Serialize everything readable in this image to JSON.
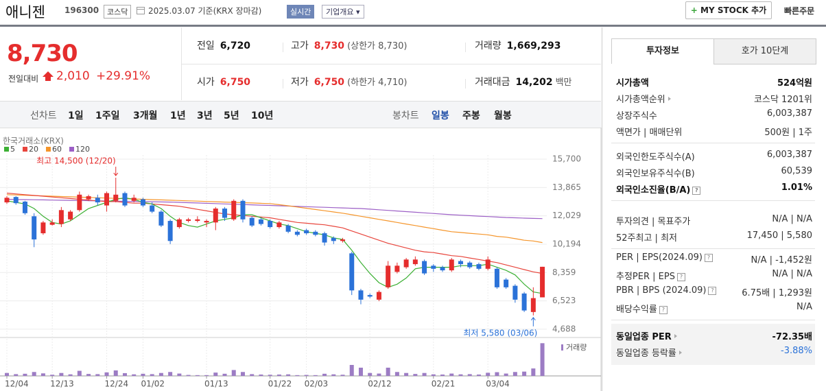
{
  "header": {
    "name": "애니젠",
    "code": "196300",
    "market": "코스닥",
    "date_note": "2025.03.07 기준(KRX 장마감)",
    "realtime": "실시간",
    "company_button": "기업개요",
    "mystock_button": "MY STOCK 추가",
    "quick_order": "빠른주문"
  },
  "quote": {
    "price": "8,730",
    "change_label": "전일대비",
    "change": "2,010",
    "change_rate": "+29.91%",
    "rows": [
      [
        {
          "label": "전일",
          "value": "6,720"
        },
        {
          "label": "고가",
          "value": "8,730",
          "extra": "(상한가 8,730)"
        },
        {
          "label": "거래량",
          "value": "1,669,293"
        }
      ],
      [
        {
          "label": "시가",
          "value": "6,750"
        },
        {
          "label": "저가",
          "value": "6,750",
          "extra": "(하한가 4,710)"
        },
        {
          "label": "거래대금",
          "value": "14,202",
          "extra": "백만"
        }
      ]
    ]
  },
  "periods": {
    "line_label": "선차트",
    "line_items": [
      "1일",
      "1주일",
      "3개월",
      "1년",
      "3년",
      "5년",
      "10년"
    ],
    "candle_label": "봉차트",
    "candle_items": [
      "일봉",
      "주봉",
      "월봉"
    ]
  },
  "chart_data": {
    "type": "candlestick",
    "source": "한국거래소(KRX)",
    "high_note": "최고 14,500 (12/20)",
    "low_note": "최저 5,580 (03/06)",
    "volume_label": "거래량",
    "up_color": "#e52d2d",
    "down_color": "#2b72d8",
    "volume_color": "#9c7cc4",
    "categories": [
      "12/04",
      null,
      null,
      null,
      null,
      "12/13",
      null,
      null,
      null,
      null,
      null,
      "12/24",
      null,
      null,
      null,
      "01/02",
      null,
      null,
      null,
      null,
      null,
      null,
      "01/13",
      null,
      null,
      null,
      null,
      null,
      null,
      "01/22",
      null,
      null,
      null,
      "02/03",
      null,
      null,
      null,
      null,
      null,
      null,
      "02/12",
      null,
      null,
      null,
      null,
      null,
      null,
      "02/21",
      null,
      null,
      null,
      null,
      null,
      "03/04",
      null,
      null,
      null,
      null,
      null,
      null
    ],
    "open": [
      12900,
      13250,
      12950,
      12000,
      10900,
      11450,
      11500,
      11800,
      12400,
      13100,
      13200,
      12700,
      13000,
      13500,
      13000,
      13100,
      12700,
      12300,
      11700,
      11300,
      11700,
      11700,
      11600,
      11600,
      12500,
      11800,
      13000,
      11900,
      11800,
      11700,
      11300,
      11400,
      11000,
      11100,
      11000,
      10900,
      10600,
      10400,
      9600,
      7200,
      6900,
      6600,
      7400,
      8400,
      8700,
      8900,
      9100,
      8800,
      8700,
      8500,
      9100,
      9000,
      8900,
      8600,
      8600,
      7900,
      7500,
      7000,
      5800,
      6750
    ],
    "high": [
      13300,
      13300,
      13000,
      12200,
      11700,
      11800,
      12600,
      12400,
      13600,
      13400,
      13400,
      13600,
      14500,
      13600,
      13400,
      13200,
      12900,
      12400,
      11800,
      11900,
      11900,
      12000,
      11800,
      12600,
      12600,
      13100,
      13100,
      12000,
      11900,
      11800,
      11700,
      11500,
      11100,
      11200,
      11100,
      11000,
      10700,
      10600,
      9700,
      7300,
      7000,
      7200,
      9100,
      9000,
      9300,
      9400,
      9200,
      8900,
      8800,
      9300,
      9200,
      9100,
      9000,
      9400,
      8700,
      8000,
      7600,
      7100,
      7400,
      8730
    ],
    "low": [
      12800,
      12750,
      12100,
      10000,
      10800,
      11400,
      11300,
      11700,
      12300,
      13000,
      12700,
      12300,
      12900,
      12600,
      12900,
      12600,
      12200,
      11300,
      10200,
      11200,
      11600,
      11600,
      11300,
      11100,
      11700,
      11700,
      11600,
      11300,
      11400,
      11200,
      11200,
      10900,
      10700,
      10800,
      10700,
      10100,
      10200,
      10300,
      6900,
      6300,
      6700,
      6500,
      7300,
      8300,
      8600,
      8800,
      8200,
      8400,
      8400,
      8400,
      8700,
      8600,
      8500,
      8500,
      7300,
      7300,
      6400,
      5800,
      5580,
      6750
    ],
    "close": [
      13200,
      12850,
      12200,
      10500,
      11600,
      11600,
      12400,
      12300,
      13400,
      13300,
      12900,
      13500,
      13400,
      12700,
      13200,
      12700,
      12300,
      11400,
      10400,
      11800,
      11800,
      11800,
      11700,
      12500,
      11900,
      13000,
      11800,
      11400,
      11500,
      11300,
      11600,
      11000,
      10800,
      10900,
      10800,
      10300,
      10400,
      10500,
      7200,
      6600,
      6800,
      7100,
      8800,
      8800,
      9200,
      9200,
      8300,
      8600,
      8500,
      9200,
      8900,
      8700,
      8600,
      9200,
      7400,
      7400,
      6600,
      5900,
      6700,
      8730
    ],
    "volume": [
      150000,
      90000,
      110000,
      200000,
      130000,
      60000,
      150000,
      80000,
      260000,
      100000,
      90000,
      180000,
      280000,
      140000,
      80000,
      110000,
      90000,
      150000,
      200000,
      120000,
      50000,
      40000,
      40000,
      170000,
      110000,
      300000,
      200000,
      90000,
      70000,
      60000,
      70000,
      80000,
      40000,
      50000,
      40000,
      110000,
      80000,
      60000,
      560000,
      420000,
      150000,
      120000,
      420000,
      200000,
      150000,
      100000,
      150000,
      80000,
      70000,
      120000,
      80000,
      90000,
      70000,
      160000,
      190000,
      120000,
      200000,
      220000,
      380000,
      1669293
    ],
    "series": [
      {
        "name": "5",
        "color": "#3cb034",
        "values": [
          13000,
          12900,
          12800,
          12500,
          12000,
          11600,
          11500,
          11700,
          12100,
          12500,
          12700,
          12900,
          13100,
          13200,
          13100,
          12900,
          12800,
          12500,
          12000,
          11600,
          11400,
          11300,
          11500,
          11700,
          11800,
          11900,
          12100,
          12100,
          11900,
          11700,
          11500,
          11400,
          11200,
          11000,
          10900,
          10800,
          10600,
          10500,
          9800,
          9000,
          8300,
          7700,
          7400,
          7600,
          8000,
          8600,
          8700,
          8700,
          8700,
          8700,
          8800,
          8800,
          8800,
          8900,
          8700,
          8500,
          8200,
          7600,
          7100,
          7000
        ]
      },
      {
        "name": "20",
        "color": "#e8453c",
        "values": [
          13500,
          13450,
          13400,
          13350,
          13300,
          13250,
          13200,
          13150,
          13100,
          13050,
          13000,
          12950,
          12950,
          12900,
          12850,
          12850,
          12800,
          12750,
          12700,
          12650,
          12550,
          12450,
          12350,
          12250,
          12150,
          12100,
          12050,
          12000,
          11950,
          11900,
          11800,
          11700,
          11600,
          11550,
          11500,
          11450,
          11350,
          11250,
          11050,
          10850,
          10650,
          10450,
          10250,
          10100,
          9950,
          9800,
          9700,
          9650,
          9550,
          9450,
          9400,
          9300,
          9200,
          9100,
          9000,
          8850,
          8700,
          8550,
          8400,
          8300
        ]
      },
      {
        "name": "60",
        "color": "#f5952a",
        "values": [
          13400,
          13380,
          13360,
          13340,
          13320,
          13300,
          13280,
          13260,
          13240,
          13220,
          13200,
          13180,
          13160,
          13140,
          13120,
          13100,
          13080,
          13060,
          13040,
          13020,
          13000,
          12980,
          12960,
          12940,
          12920,
          12900,
          12880,
          12860,
          12840,
          12820,
          12750,
          12680,
          12600,
          12520,
          12440,
          12360,
          12280,
          12200,
          12100,
          12000,
          11900,
          11800,
          11700,
          11600,
          11500,
          11400,
          11300,
          11200,
          11100,
          11000,
          10950,
          10900,
          10850,
          10800,
          10700,
          10650,
          10550,
          10450,
          10400,
          10300
        ]
      },
      {
        "name": "120",
        "color": "#9c5fc6",
        "values": [
          13100,
          13090,
          13080,
          13070,
          13060,
          13050,
          13040,
          13030,
          13020,
          13010,
          13000,
          12990,
          12980,
          12970,
          12960,
          12950,
          12940,
          12930,
          12920,
          12900,
          12880,
          12860,
          12840,
          12820,
          12800,
          12780,
          12760,
          12740,
          12720,
          12700,
          12680,
          12660,
          12640,
          12620,
          12600,
          12580,
          12560,
          12540,
          12520,
          12500,
          12460,
          12420,
          12380,
          12340,
          12300,
          12260,
          12220,
          12180,
          12140,
          12100,
          12070,
          12040,
          12010,
          11980,
          11950,
          11920,
          11900,
          11880,
          11860,
          11850
        ]
      }
    ],
    "ylim": [
      4150,
      16500
    ],
    "yticks": [
      {
        "value": 15700,
        "label": "15,700"
      },
      {
        "value": 13865,
        "label": "13,865"
      },
      {
        "value": 12029,
        "label": "12,029"
      },
      {
        "value": 10194,
        "label": "10,194"
      },
      {
        "value": 8359,
        "label": "8,359"
      },
      {
        "value": 6523,
        "label": "6,523"
      },
      {
        "value": 4688,
        "label": "4,688"
      }
    ],
    "y2lim": [
      0,
      1750000
    ],
    "grid": true
  },
  "side": {
    "tabs": [
      "투자정보",
      "호가 10단계"
    ],
    "sections": [
      [
        {
          "label": "시가총액",
          "value": "524억원"
        },
        {
          "label": "시가총액순위",
          "value": "코스닥 1201위"
        },
        {
          "label": "상장주식수",
          "value": "6,003,387"
        },
        {
          "label": "액면가 | 매매단위",
          "value": "500원 | 1주"
        }
      ],
      [
        {
          "label": "외국인한도주식수(A)",
          "value": "6,003,387"
        },
        {
          "label": "외국인보유주식수(B)",
          "value": "60,539"
        },
        {
          "label": "외국인소진율(B/A)",
          "value": "1.01%"
        }
      ],
      [
        {
          "label": "투자의견 | 목표주가",
          "value": "N/A | N/A"
        },
        {
          "label": "52주최고 | 최저",
          "value": "17,450 | 5,580"
        }
      ],
      [
        {
          "label": "PER | EPS(2024.09)",
          "value": "N/A | -1,452원"
        },
        {
          "label": "추정PER | EPS",
          "value": "N/A | N/A"
        },
        {
          "label": "PBR | BPS (2024.09)",
          "value": "6.75배 | 1,293원"
        },
        {
          "label": "배당수익률",
          "value": "N/A"
        }
      ],
      [
        {
          "label": "동일업종 PER",
          "value": "-72.35배"
        },
        {
          "label": "동일업종 등락률",
          "value": "-3.88%"
        }
      ]
    ]
  }
}
